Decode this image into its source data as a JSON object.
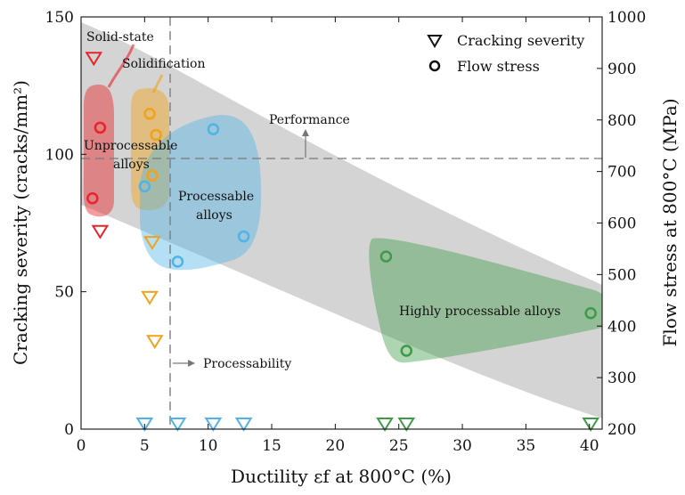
{
  "chart_data": {
    "type": "scatter",
    "xlabel": "Ductility εf at 800°C (%)",
    "ylabel_left": "Cracking severity (cracks/mm²)",
    "ylabel_right": "Flow stress at 800°C (MPa)",
    "xlim": [
      0,
      41
    ],
    "ylim_left": [
      0,
      150
    ],
    "ylim_right": [
      200,
      1000
    ],
    "x_ticks": [
      0,
      5,
      10,
      15,
      20,
      25,
      30,
      35,
      40
    ],
    "y_left_ticks": [
      0,
      50,
      100,
      150
    ],
    "y_right_ticks": [
      200,
      300,
      400,
      500,
      600,
      700,
      800,
      900,
      1000
    ],
    "legend": {
      "position": "top-right",
      "items": [
        {
          "label": "Cracking severity",
          "marker": "triangle-down"
        },
        {
          "label": "Flow stress",
          "marker": "circle"
        }
      ]
    },
    "colors": {
      "solid_state": "#e8232a",
      "solidification": "#f2a218",
      "processable": "#4fb3e8",
      "highly_processable": "#3d9a46",
      "band": "#cccccc",
      "threshold": "#777777"
    },
    "thresholds": {
      "performance_flow_stress_mpa": 727,
      "processability_ductility_pct": 7
    },
    "annotations": {
      "solid_state": "Solid-state",
      "solidification": "Solidification",
      "unprocessable_line1": "Unprocessable",
      "unprocessable_line2": "alloys",
      "processable_line1": "Processable",
      "processable_line2": "alloys",
      "highly_processable": "Highly processable alloys",
      "performance": "Performance",
      "processability": "Processability"
    },
    "series": [
      {
        "name": "Cracking severity",
        "group": "solid_state",
        "marker": "triangle-down",
        "axis": "left",
        "points": [
          [
            1.0,
            135
          ],
          [
            1.5,
            72
          ]
        ]
      },
      {
        "name": "Flow stress",
        "group": "solid_state",
        "marker": "circle",
        "axis": "right",
        "points": [
          [
            1.5,
            785
          ],
          [
            0.9,
            648
          ]
        ]
      },
      {
        "name": "Cracking severity",
        "group": "solidification",
        "marker": "triangle-down",
        "axis": "left",
        "points": [
          [
            5.6,
            68
          ],
          [
            5.4,
            48
          ],
          [
            5.8,
            32
          ]
        ]
      },
      {
        "name": "Flow stress",
        "group": "solidification",
        "marker": "circle",
        "axis": "right",
        "points": [
          [
            5.4,
            812
          ],
          [
            5.9,
            771
          ],
          [
            5.6,
            692
          ]
        ]
      },
      {
        "name": "Cracking severity",
        "group": "processable",
        "marker": "triangle-down",
        "axis": "left",
        "points": [
          [
            5.0,
            1
          ],
          [
            7.6,
            0
          ],
          [
            10.4,
            0
          ],
          [
            12.8,
            0
          ]
        ]
      },
      {
        "name": "Flow stress",
        "group": "processable",
        "marker": "circle",
        "axis": "right",
        "points": [
          [
            10.4,
            782
          ],
          [
            12.8,
            574
          ],
          [
            7.6,
            525
          ],
          [
            5.0,
            671
          ]
        ]
      },
      {
        "name": "Cracking severity",
        "group": "highly_processable",
        "marker": "triangle-down",
        "axis": "left",
        "points": [
          [
            23.9,
            0
          ],
          [
            25.6,
            0
          ],
          [
            40.1,
            0
          ]
        ]
      },
      {
        "name": "Flow stress",
        "group": "highly_processable",
        "marker": "circle",
        "axis": "right",
        "points": [
          [
            24.0,
            535
          ],
          [
            25.6,
            352
          ],
          [
            40.1,
            425
          ]
        ]
      }
    ]
  }
}
